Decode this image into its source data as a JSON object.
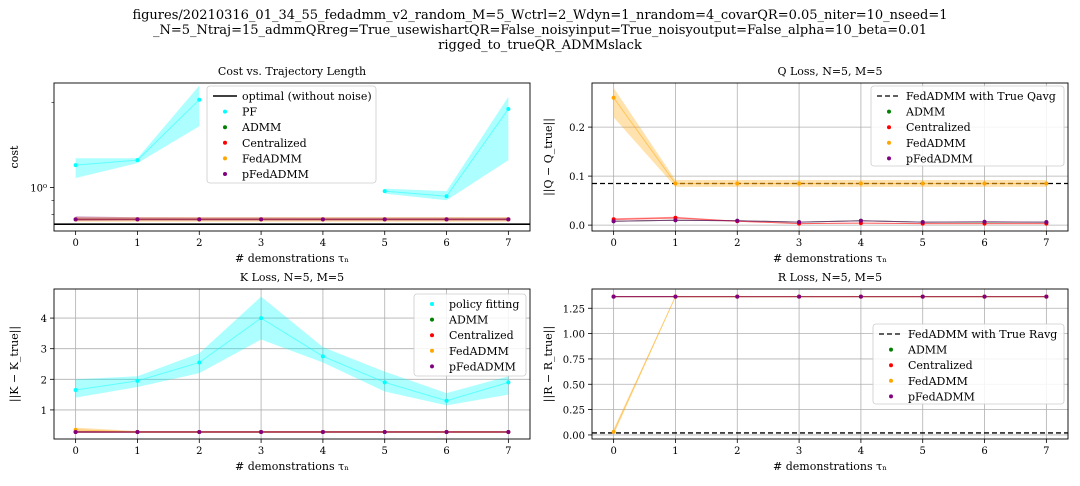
{
  "figure_title_lines": [
    "figures/20210316_01_34_55_fedadmm_v2_random_M=5_Wctrl=2_Wdyn=1_nrandom=4_covarQR=0.05_niter=10_nseed=1",
    "_N=5_Ntraj=15_admmQRreg=True_usewishartQR=False_noisyinput=True_noisyoutput=False_alpha=10_beta=0.01",
    "rigged_to_trueQR_ADMMslack"
  ],
  "colors": {
    "PF": "#00ffff",
    "ADMM": "#008000",
    "Centralized": "#ff0000",
    "FedADMM": "#ffa500",
    "pFedADMM": "#800080",
    "reference": "#000000",
    "grid": "#b0b0b0"
  },
  "chart_data": [
    {
      "type": "line",
      "title": "Cost vs. Trajectory Length",
      "xlabel": "# demonstrations τₙ",
      "ylabel": "cost",
      "yscale": "log",
      "xlim": [
        -0.35,
        7.35
      ],
      "ylim": [
        0.7,
        2.35
      ],
      "xticks": [
        0,
        1,
        2,
        3,
        4,
        5,
        6,
        7
      ],
      "yticks": [
        1.0
      ],
      "ytick_labels": [
        "10⁰"
      ],
      "grid": false,
      "legend_position": "top-center",
      "reference_line": {
        "label": "optimal (without noise)",
        "value": 0.74,
        "style": "solid",
        "color": "#000000"
      },
      "x": [
        0,
        1,
        2,
        3,
        4,
        5,
        6,
        7
      ],
      "series": [
        {
          "name": "PF",
          "color": "#00ffff",
          "values": [
            1.2,
            1.25,
            2.05,
            null,
            null,
            0.97,
            0.93,
            1.9
          ],
          "band_low": [
            1.08,
            1.22,
            1.65,
            null,
            null,
            0.95,
            0.9,
            1.25
          ],
          "band_high": [
            1.27,
            1.27,
            2.3,
            null,
            null,
            0.99,
            0.97,
            2.1
          ]
        },
        {
          "name": "ADMM",
          "color": "#008000",
          "values": [
            0.77,
            0.77,
            0.77,
            0.77,
            0.77,
            0.77,
            0.77,
            0.77
          ],
          "band_low": [
            0.765,
            0.765,
            0.765,
            0.765,
            0.765,
            0.765,
            0.765,
            0.765
          ],
          "band_high": [
            0.775,
            0.775,
            0.775,
            0.775,
            0.775,
            0.775,
            0.775,
            0.775
          ]
        },
        {
          "name": "Centralized",
          "color": "#ff0000",
          "values": [
            0.77,
            0.77,
            0.77,
            0.77,
            0.77,
            0.77,
            0.77,
            0.77
          ],
          "band_low": [
            0.765,
            0.765,
            0.765,
            0.765,
            0.765,
            0.765,
            0.765,
            0.765
          ],
          "band_high": [
            0.775,
            0.775,
            0.775,
            0.775,
            0.775,
            0.775,
            0.775,
            0.775
          ]
        },
        {
          "name": "FedADMM",
          "color": "#ffa500",
          "values": [
            0.77,
            0.77,
            0.77,
            0.77,
            0.77,
            0.77,
            0.77,
            0.77
          ],
          "band_low": [
            0.755,
            0.755,
            0.755,
            0.755,
            0.755,
            0.755,
            0.755,
            0.755
          ],
          "band_high": [
            0.785,
            0.785,
            0.785,
            0.785,
            0.785,
            0.785,
            0.785,
            0.785
          ]
        },
        {
          "name": "pFedADMM",
          "color": "#800080",
          "values": [
            0.77,
            0.77,
            0.77,
            0.77,
            0.77,
            0.77,
            0.77,
            0.77
          ],
          "band_low": [
            0.76,
            0.762,
            0.762,
            0.762,
            0.762,
            0.762,
            0.762,
            0.762
          ],
          "band_high": [
            0.79,
            0.783,
            0.782,
            0.782,
            0.781,
            0.781,
            0.781,
            0.78
          ]
        }
      ]
    },
    {
      "type": "line",
      "title": "Q Loss, N=5, M=5",
      "xlabel": "# demonstrations τₙ",
      "ylabel": "||Q − Q_true||",
      "xlim": [
        -0.35,
        7.35
      ],
      "ylim": [
        -0.012,
        0.29
      ],
      "xticks": [
        0,
        1,
        2,
        3,
        4,
        5,
        6,
        7
      ],
      "yticks": [
        0.0,
        0.1,
        0.2
      ],
      "ytick_labels": [
        "0.0",
        "0.1",
        "0.2"
      ],
      "grid": true,
      "legend_position": "top-right",
      "reference_line": {
        "label": "FedADMM with True Qavg",
        "value": 0.085,
        "style": "dashed",
        "color": "#000000"
      },
      "x": [
        0,
        1,
        2,
        3,
        4,
        5,
        6,
        7
      ],
      "series": [
        {
          "name": "ADMM",
          "color": "#008000",
          "values": [
            0.008,
            0.01,
            0.009,
            0.006,
            0.009,
            0.006,
            0.006,
            0.006
          ],
          "band_low": [
            0.007,
            0.009,
            0.008,
            0.005,
            0.008,
            0.005,
            0.005,
            0.005
          ],
          "band_high": [
            0.009,
            0.011,
            0.01,
            0.007,
            0.01,
            0.007,
            0.007,
            0.007
          ]
        },
        {
          "name": "Centralized",
          "color": "#ff0000",
          "values": [
            0.012,
            0.015,
            0.008,
            0.003,
            0.004,
            0.003,
            0.003,
            0.003
          ],
          "band_low": [
            0.01,
            0.013,
            0.007,
            0.002,
            0.003,
            0.002,
            0.002,
            0.002
          ],
          "band_high": [
            0.014,
            0.017,
            0.009,
            0.004,
            0.005,
            0.004,
            0.004,
            0.004
          ]
        },
        {
          "name": "FedADMM",
          "color": "#ffa500",
          "values": [
            0.26,
            0.085,
            0.085,
            0.085,
            0.085,
            0.085,
            0.085,
            0.085
          ],
          "band_low": [
            0.22,
            0.078,
            0.078,
            0.078,
            0.078,
            0.078,
            0.078,
            0.078
          ],
          "band_high": [
            0.28,
            0.092,
            0.092,
            0.092,
            0.092,
            0.092,
            0.092,
            0.092
          ]
        },
        {
          "name": "pFedADMM",
          "color": "#800080",
          "values": [
            0.008,
            0.01,
            0.009,
            0.006,
            0.009,
            0.006,
            0.007,
            0.006
          ],
          "band_low": [
            0.007,
            0.009,
            0.008,
            0.005,
            0.008,
            0.005,
            0.006,
            0.005
          ],
          "band_high": [
            0.009,
            0.011,
            0.01,
            0.007,
            0.01,
            0.007,
            0.008,
            0.007
          ]
        }
      ]
    },
    {
      "type": "line",
      "title": "K Loss, N=5, M=5",
      "xlabel": "# demonstrations τₙ",
      "ylabel": "||K − K_true||",
      "xlim": [
        -0.35,
        7.35
      ],
      "ylim": [
        0.05,
        4.95
      ],
      "xticks": [
        0,
        1,
        2,
        3,
        4,
        5,
        6,
        7
      ],
      "yticks": [
        1,
        2,
        3,
        4
      ],
      "ytick_labels": [
        "1",
        "2",
        "3",
        "4"
      ],
      "grid": true,
      "legend_position": "top-right",
      "x": [
        0,
        1,
        2,
        3,
        4,
        5,
        6,
        7
      ],
      "series": [
        {
          "name": "policy fitting",
          "color": "#00ffff",
          "values": [
            1.65,
            1.95,
            2.55,
            4.0,
            2.75,
            1.9,
            1.3,
            1.9
          ],
          "band_low": [
            1.4,
            1.75,
            2.2,
            3.3,
            2.55,
            1.6,
            1.15,
            1.5
          ],
          "band_high": [
            2.0,
            2.1,
            2.85,
            4.7,
            3.05,
            2.25,
            1.55,
            2.1
          ]
        },
        {
          "name": "ADMM",
          "color": "#008000",
          "values": [
            0.28,
            0.28,
            0.28,
            0.28,
            0.28,
            0.28,
            0.28,
            0.28
          ],
          "band_low": [
            0.25,
            0.25,
            0.25,
            0.25,
            0.25,
            0.25,
            0.25,
            0.25
          ],
          "band_high": [
            0.31,
            0.31,
            0.31,
            0.31,
            0.31,
            0.31,
            0.31,
            0.31
          ]
        },
        {
          "name": "Centralized",
          "color": "#ff0000",
          "values": [
            0.28,
            0.28,
            0.28,
            0.28,
            0.28,
            0.28,
            0.28,
            0.28
          ],
          "band_low": [
            0.25,
            0.25,
            0.25,
            0.25,
            0.25,
            0.25,
            0.25,
            0.25
          ],
          "band_high": [
            0.31,
            0.31,
            0.31,
            0.31,
            0.31,
            0.31,
            0.31,
            0.31
          ]
        },
        {
          "name": "FedADMM",
          "color": "#ffa500",
          "values": [
            0.35,
            0.28,
            0.28,
            0.28,
            0.28,
            0.28,
            0.28,
            0.28
          ],
          "band_low": [
            0.3,
            0.25,
            0.25,
            0.25,
            0.25,
            0.25,
            0.25,
            0.25
          ],
          "band_high": [
            0.42,
            0.31,
            0.31,
            0.31,
            0.31,
            0.31,
            0.31,
            0.31
          ]
        },
        {
          "name": "pFedADMM",
          "color": "#800080",
          "values": [
            0.28,
            0.28,
            0.28,
            0.28,
            0.28,
            0.28,
            0.28,
            0.28
          ],
          "band_low": [
            0.25,
            0.25,
            0.25,
            0.25,
            0.25,
            0.25,
            0.25,
            0.25
          ],
          "band_high": [
            0.31,
            0.31,
            0.31,
            0.31,
            0.31,
            0.31,
            0.31,
            0.31
          ]
        }
      ]
    },
    {
      "type": "line",
      "title": "R Loss, N=5, M=5",
      "xlabel": "# demonstrations τₙ",
      "ylabel": "||R − R_true||",
      "xlim": [
        -0.35,
        7.35
      ],
      "ylim": [
        -0.04,
        1.44
      ],
      "xticks": [
        0,
        1,
        2,
        3,
        4,
        5,
        6,
        7
      ],
      "yticks": [
        0.0,
        0.25,
        0.5,
        0.75,
        1.0,
        1.25
      ],
      "ytick_labels": [
        "0.00",
        "0.25",
        "0.50",
        "0.75",
        "1.00",
        "1.25"
      ],
      "grid": true,
      "legend_position": "center-right",
      "reference_line": {
        "label": "FedADMM with True Ravg",
        "value": 0.02,
        "style": "dashed",
        "color": "#000000"
      },
      "x": [
        0,
        1,
        2,
        3,
        4,
        5,
        6,
        7
      ],
      "series": [
        {
          "name": "ADMM",
          "color": "#008000",
          "values": [
            1.365,
            1.365,
            1.365,
            1.365,
            1.365,
            1.365,
            1.365,
            1.365
          ],
          "band_low": [
            1.36,
            1.36,
            1.36,
            1.36,
            1.36,
            1.36,
            1.36,
            1.36
          ],
          "band_high": [
            1.37,
            1.37,
            1.37,
            1.37,
            1.37,
            1.37,
            1.37,
            1.37
          ]
        },
        {
          "name": "Centralized",
          "color": "#ff0000",
          "values": [
            1.365,
            1.365,
            1.365,
            1.365,
            1.365,
            1.365,
            1.365,
            1.365
          ],
          "band_low": [
            1.36,
            1.36,
            1.36,
            1.36,
            1.36,
            1.36,
            1.36,
            1.36
          ],
          "band_high": [
            1.37,
            1.37,
            1.37,
            1.37,
            1.37,
            1.37,
            1.37,
            1.37
          ]
        },
        {
          "name": "FedADMM",
          "color": "#ffa500",
          "values": [
            0.03,
            1.365,
            1.365,
            1.365,
            1.365,
            1.365,
            1.365,
            1.365
          ],
          "band_low": [
            0.0,
            1.36,
            1.36,
            1.36,
            1.36,
            1.36,
            1.36,
            1.36
          ],
          "band_high": [
            0.06,
            1.37,
            1.37,
            1.37,
            1.37,
            1.37,
            1.37,
            1.37
          ]
        },
        {
          "name": "pFedADMM",
          "color": "#800080",
          "values": [
            1.365,
            1.365,
            1.365,
            1.365,
            1.365,
            1.365,
            1.365,
            1.365
          ],
          "band_low": [
            1.36,
            1.36,
            1.36,
            1.36,
            1.36,
            1.36,
            1.36,
            1.36
          ],
          "band_high": [
            1.37,
            1.37,
            1.37,
            1.37,
            1.37,
            1.37,
            1.37,
            1.37
          ]
        }
      ]
    }
  ]
}
